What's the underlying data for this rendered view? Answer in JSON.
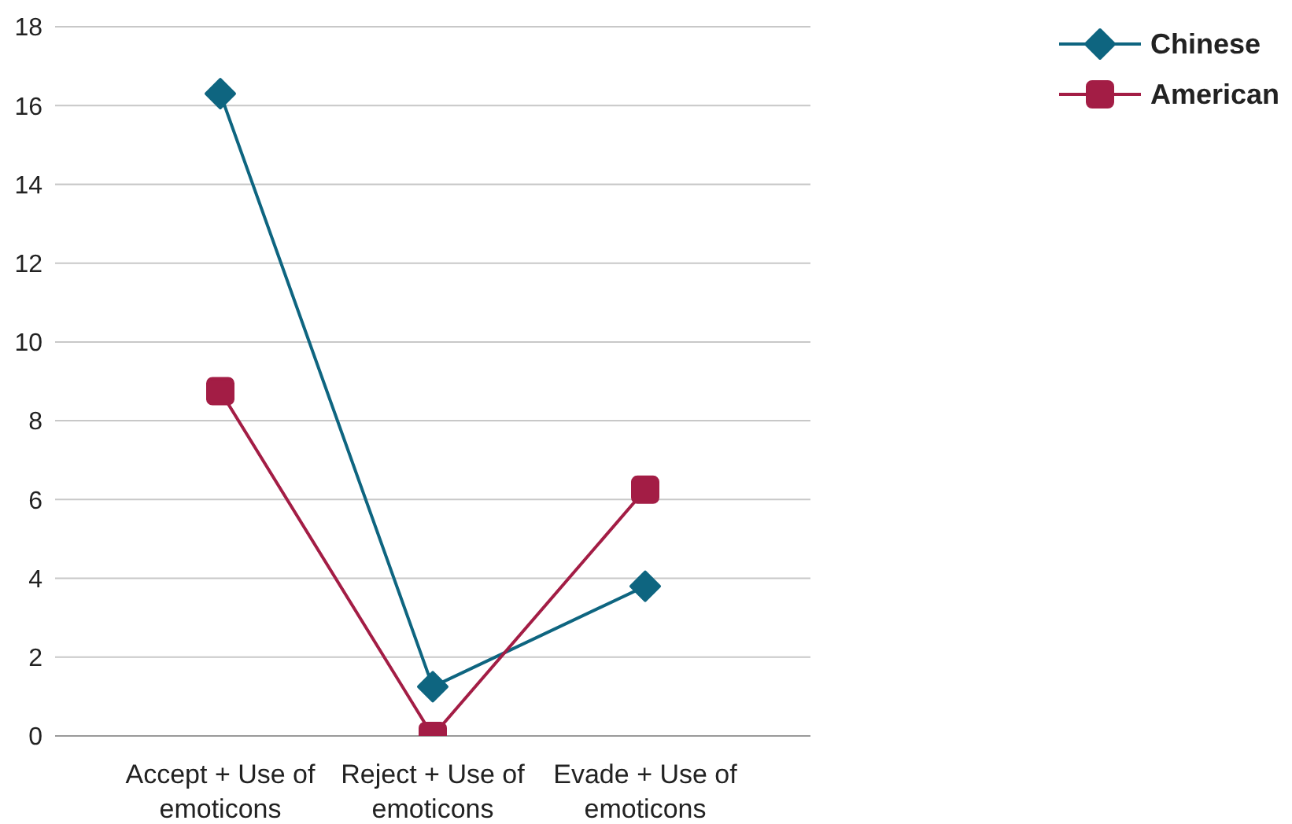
{
  "chart_data": {
    "type": "line",
    "categories": [
      "Accept + Use of emoticons",
      "Reject + Use of emoticons",
      "Evade + Use of emoticons"
    ],
    "series": [
      {
        "name": "Chinese",
        "color": "#0e6580",
        "marker": "diamond",
        "values": [
          16.3,
          1.25,
          3.8
        ]
      },
      {
        "name": "American",
        "color": "#a31d45",
        "marker": "square",
        "values": [
          8.75,
          0,
          6.25
        ]
      }
    ],
    "ylim": [
      0,
      18
    ],
    "yticks": [
      0,
      2,
      4,
      6,
      8,
      10,
      12,
      14,
      16,
      18
    ],
    "grid": "y",
    "legend": "top right"
  }
}
